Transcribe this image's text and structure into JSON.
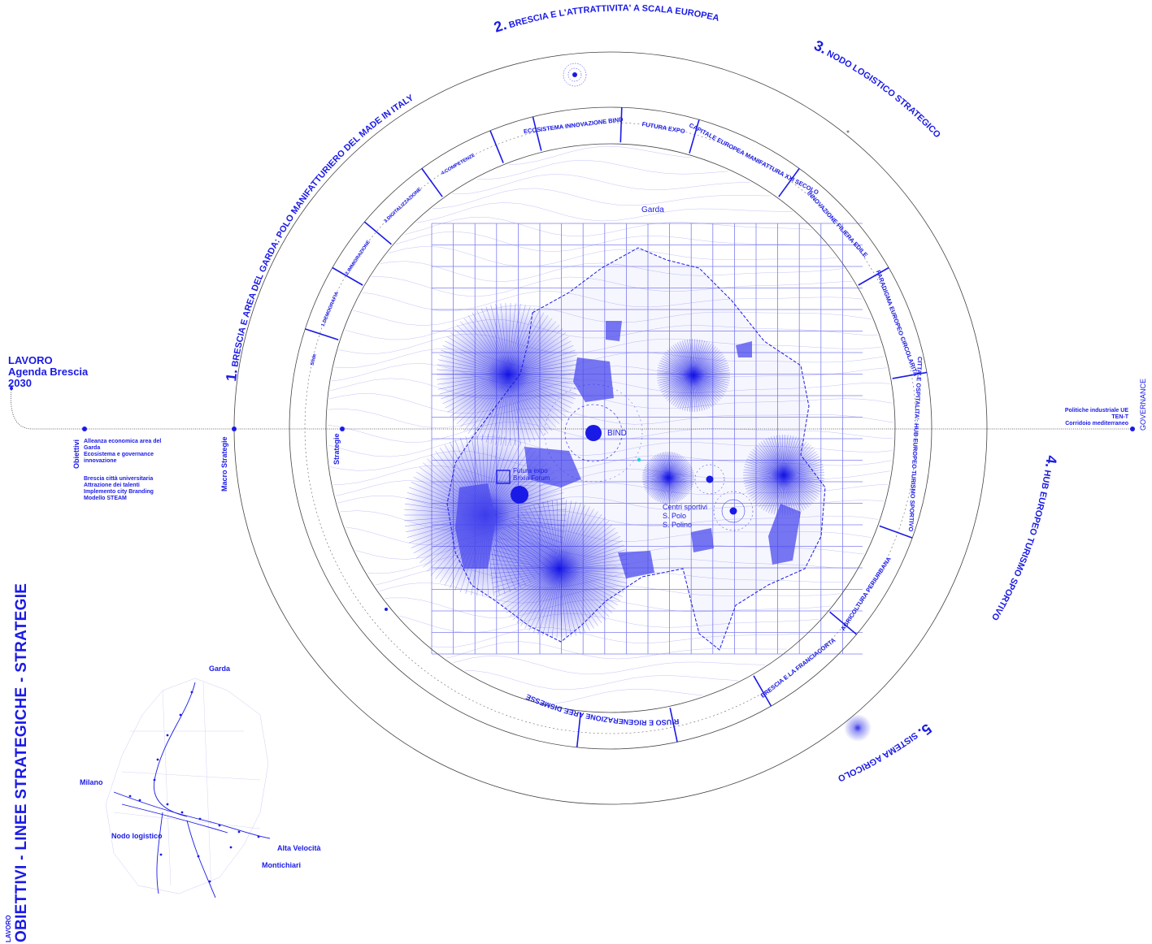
{
  "colors": {
    "accent": "#1a1ae6",
    "grid": "#7f7ff0",
    "line": "#555555",
    "cyan": "#1ad6d6"
  },
  "header": {
    "line1": "LAVORO",
    "line2": "Agenda Brescia",
    "line3": "2030"
  },
  "sidebar_title": {
    "small": "LAVORO",
    "big": "OBIETTIVI - LINEE STRATEGICHE - STRATEGIE"
  },
  "axis": {
    "obiettivi": "Obiettivi",
    "macro": "Macro Strategie",
    "strategie": "Strategie",
    "governance": "GOVERNANCE"
  },
  "obiettivi_list": [
    "Alleanza economica area del",
    "Garda",
    "Ecosistema e governance",
    "innovazione",
    "",
    "Brescia città universitaria",
    "Attrazione dei talenti",
    "Implemento city Branding",
    "Modello STEAM"
  ],
  "governance_list": [
    "Politiche industriale UE",
    "TEN-T",
    "Corridoio mediterraneo"
  ],
  "macro_strategies": [
    {
      "num": "1.",
      "label": "BRESCIA E AREA DEL GARDA: POLO MANIFATTURIERO DEL MADE IN ITALY"
    },
    {
      "num": "2.",
      "label": "BRESCIA E L'ATTRATTIVITA' A SCALA EUROPEA"
    },
    {
      "num": "3.",
      "label": "NODO LOGISTICO STRATEGICO"
    },
    {
      "num": "4.",
      "label": "HUB EUROPEO TURISMO SPORTIVO"
    },
    {
      "num": "5.",
      "label": "SISTEMA AGRICOLO"
    }
  ],
  "strategies": [
    "Sfide",
    "1.DEMOGRAFIA",
    "2.IMMIGRAZIONE",
    "3.DIGITALIZZAZIONE",
    "4.COMPETENZE",
    "ECOSISTEMA INNOVAZIONE BIND",
    "FUTURA EXPO",
    "CAPITALE EUROPEA MANIFATTURA XXI SECOLO",
    "INNOVAZIONE FILIERA EDILE",
    "PARADIGMA EUROPEO CIRCOLARITA'",
    "CITTA' E OSPITALITA': HUB EUROPEO TURISMO SPORTIVO",
    "AGRICOLTURA PERIURBANA",
    "BRESCIA E LA FRANCIACORTA",
    "RIUSO E RIGENERAZIONE AREE DISMESSE"
  ],
  "map_labels": {
    "garda": "Garda",
    "bind": "BIND",
    "futura_expo": "Futura expo",
    "brixia_forum": "Brixia Forum",
    "centri_sportivi": "Centri sportivi",
    "s_polo": "S. Polo",
    "s_polino": "S. Polino"
  },
  "inset_map": {
    "garda": "Garda",
    "milano": "Milano",
    "nodo": "Nodo logistico",
    "alta_velocita": "Alta Velocità",
    "montichiari": "Montichiari"
  }
}
